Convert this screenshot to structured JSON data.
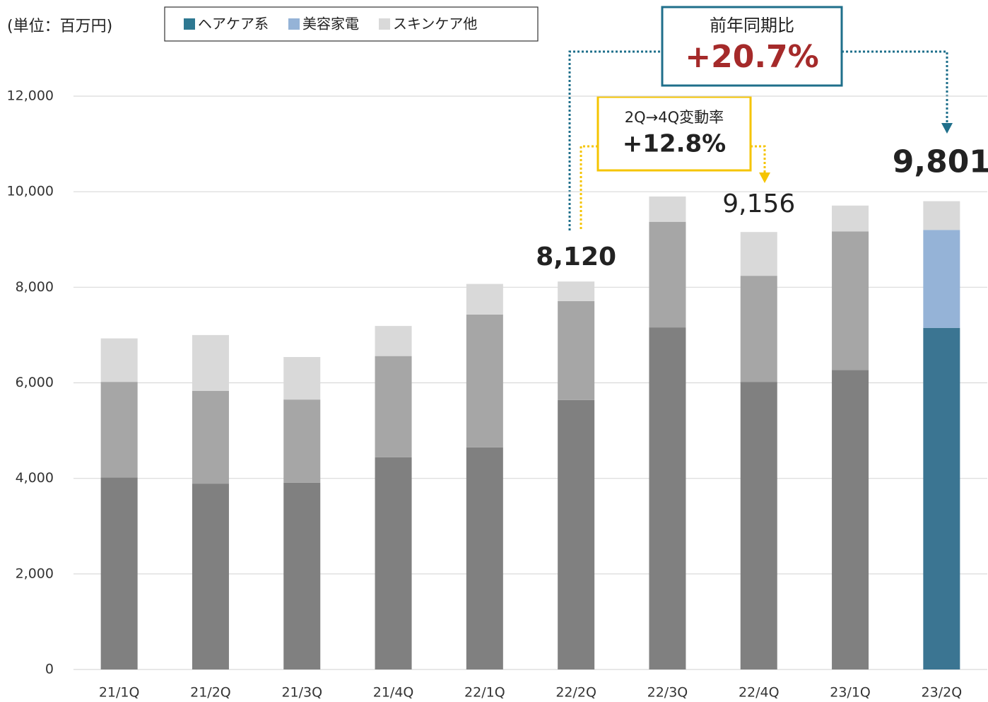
{
  "chart_data": {
    "type": "stacked_bar",
    "unit_label": "(単位：百万円)",
    "categories": [
      "21/1Q",
      "21/2Q",
      "21/3Q",
      "21/4Q",
      "22/1Q",
      "22/2Q",
      "22/3Q",
      "22/4Q",
      "23/1Q",
      "23/2Q"
    ],
    "series": [
      {
        "name": "ヘアケア系",
        "color": "#2e7891",
        "values": [
          4020,
          3890,
          3910,
          4440,
          4650,
          5640,
          7160,
          6020,
          6270,
          7150
        ],
        "colors": [
          "#808080",
          "#808080",
          "#808080",
          "#808080",
          "#808080",
          "#808080",
          "#808080",
          "#808080",
          "#808080",
          "#3b7592"
        ]
      },
      {
        "name": "美容家電",
        "color": "#95b3d7",
        "values": [
          2000,
          1940,
          1740,
          2120,
          2780,
          2070,
          2210,
          2220,
          2900,
          2050
        ],
        "colors": [
          "#a6a6a6",
          "#a6a6a6",
          "#a6a6a6",
          "#a6a6a6",
          "#a6a6a6",
          "#a6a6a6",
          "#a6a6a6",
          "#a6a6a6",
          "#a6a6a6",
          "#95b3d7"
        ]
      },
      {
        "name": "スキンケア他",
        "color": "#d9d9d9",
        "values": [
          910,
          1170,
          890,
          630,
          640,
          410,
          530,
          916,
          540,
          601
        ],
        "colors": [
          "#d9d9d9",
          "#d9d9d9",
          "#d9d9d9",
          "#d9d9d9",
          "#d9d9d9",
          "#d9d9d9",
          "#d9d9d9",
          "#d9d9d9",
          "#d9d9d9",
          "#d9d9d9"
        ]
      }
    ],
    "total_labels": [
      {
        "index": 5,
        "value": 8120,
        "label": "8,120"
      },
      {
        "index": 7,
        "value": 9156,
        "label": "9,156"
      },
      {
        "index": 9,
        "value": 9801,
        "label": "9,801"
      }
    ],
    "callouts": [
      {
        "title": "前年同期比",
        "text": "+20.7%"
      },
      {
        "title": "2Q→4Q変動率",
        "text": "+12.8%"
      }
    ],
    "ylim": [
      0,
      12000
    ],
    "yticks": [
      0,
      {
        "value": 2000,
        "label": "2,000"
      },
      {
        "value": 4000,
        "label": "4,000"
      },
      {
        "value": 6000,
        "label": "6,000"
      },
      {
        "value": 8000,
        "label": "8,000"
      },
      {
        "value": 10000,
        "label": "10,000"
      },
      {
        "value": 12000,
        "label": "12,000"
      }
    ],
    "grid": true
  }
}
